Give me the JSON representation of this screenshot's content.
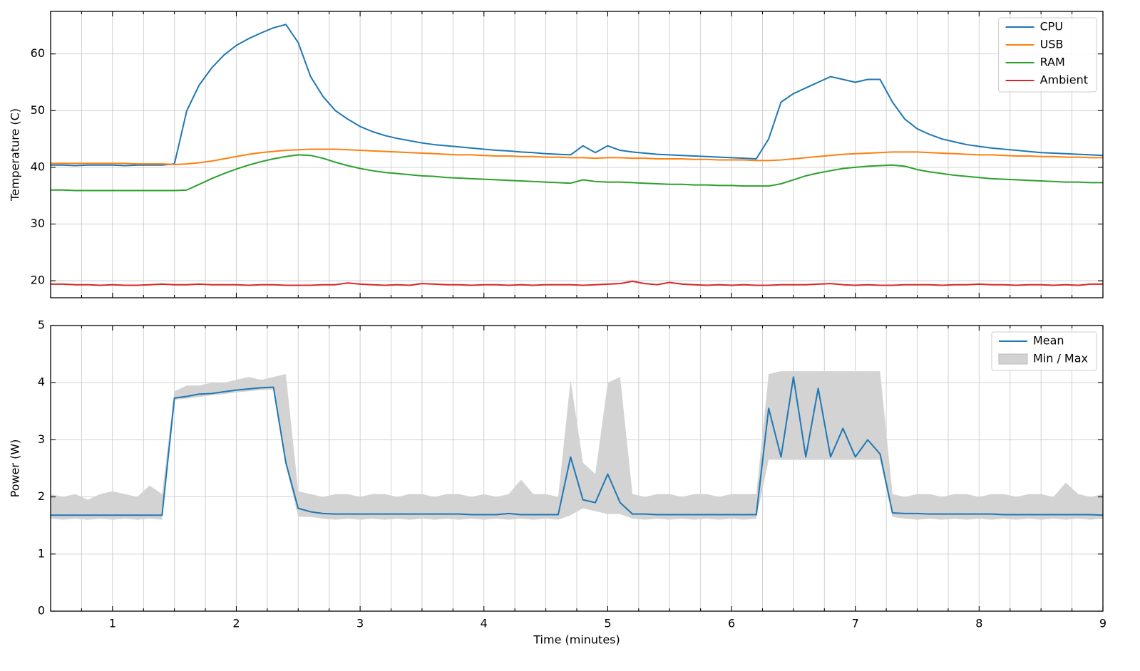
{
  "chart_data": [
    {
      "type": "line",
      "ylabel": "Temperature (C)",
      "x": [
        0.5,
        0.6,
        0.7,
        0.8,
        0.9,
        1.0,
        1.1,
        1.2,
        1.3,
        1.4,
        1.5,
        1.6,
        1.7,
        1.8,
        1.9,
        2.0,
        2.1,
        2.2,
        2.3,
        2.4,
        2.5,
        2.6,
        2.7,
        2.8,
        2.9,
        3.0,
        3.1,
        3.2,
        3.3,
        3.4,
        3.5,
        3.6,
        3.7,
        3.8,
        3.9,
        4.0,
        4.1,
        4.2,
        4.3,
        4.4,
        4.5,
        4.6,
        4.7,
        4.8,
        4.9,
        5.0,
        5.1,
        5.2,
        5.3,
        5.4,
        5.5,
        5.6,
        5.7,
        5.8,
        5.9,
        6.0,
        6.1,
        6.2,
        6.3,
        6.4,
        6.5,
        6.6,
        6.7,
        6.8,
        6.9,
        7.0,
        7.1,
        7.2,
        7.3,
        7.4,
        7.5,
        7.6,
        7.7,
        7.8,
        7.9,
        8.0,
        8.1,
        8.2,
        8.3,
        8.4,
        8.5,
        8.6,
        8.7,
        8.8,
        8.9,
        9.0
      ],
      "xlim": [
        0.5,
        9
      ],
      "ylim": [
        17,
        67.5
      ],
      "xticks": [
        1,
        2,
        3,
        4,
        5,
        6,
        7,
        8,
        9
      ],
      "xticklabels": false,
      "xminorticks": [
        0.5,
        0.75,
        1.25,
        1.5,
        1.75,
        2.25,
        2.5,
        2.75,
        3.25,
        3.5,
        3.75,
        4.25,
        4.5,
        4.75,
        5.25,
        5.5,
        5.75,
        6.25,
        6.5,
        6.75,
        7.25,
        7.5,
        7.75,
        8.25,
        8.5,
        8.75
      ],
      "yticks": [
        20,
        30,
        40,
        50,
        60
      ],
      "grid": true,
      "legend": "upper right",
      "series": [
        {
          "name": "CPU",
          "color": "#1f77b4",
          "values": [
            40.4,
            40.4,
            40.3,
            40.4,
            40.4,
            40.4,
            40.3,
            40.4,
            40.4,
            40.4,
            40.6,
            50,
            54.5,
            57.5,
            59.8,
            61.5,
            62.7,
            63.7,
            64.6,
            65.2,
            62,
            56,
            52.5,
            50,
            48.5,
            47.2,
            46.3,
            45.6,
            45.1,
            44.7,
            44.3,
            44,
            43.8,
            43.6,
            43.4,
            43.2,
            43,
            42.9,
            42.7,
            42.6,
            42.4,
            42.3,
            42.2,
            43.8,
            42.6,
            43.8,
            43,
            42.7,
            42.5,
            42.3,
            42.2,
            42.1,
            42,
            41.9,
            41.8,
            41.7,
            41.6,
            41.5,
            45,
            51.5,
            53,
            54,
            55,
            56,
            55.5,
            55,
            55.5,
            55.5,
            51.5,
            48.5,
            46.8,
            45.8,
            45,
            44.5,
            44,
            43.7,
            43.4,
            43.2,
            43,
            42.8,
            42.6,
            42.5,
            42.4,
            42.3,
            42.2,
            42.1
          ]
        },
        {
          "name": "USB",
          "color": "#ff7f0e",
          "values": [
            40.7,
            40.7,
            40.7,
            40.7,
            40.7,
            40.7,
            40.7,
            40.6,
            40.6,
            40.6,
            40.5,
            40.6,
            40.8,
            41.1,
            41.5,
            41.9,
            42.3,
            42.6,
            42.8,
            43.0,
            43.1,
            43.2,
            43.2,
            43.2,
            43.1,
            43.0,
            42.9,
            42.8,
            42.7,
            42.6,
            42.5,
            42.4,
            42.3,
            42.2,
            42.2,
            42.1,
            42.0,
            42.0,
            41.9,
            41.9,
            41.8,
            41.8,
            41.7,
            41.7,
            41.6,
            41.7,
            41.7,
            41.6,
            41.6,
            41.5,
            41.5,
            41.5,
            41.4,
            41.4,
            41.3,
            41.3,
            41.3,
            41.2,
            41.2,
            41.3,
            41.5,
            41.7,
            41.9,
            42.1,
            42.3,
            42.4,
            42.5,
            42.6,
            42.7,
            42.7,
            42.7,
            42.6,
            42.5,
            42.4,
            42.3,
            42.2,
            42.2,
            42.1,
            42.0,
            42.0,
            41.9,
            41.9,
            41.8,
            41.8,
            41.7,
            41.7
          ]
        },
        {
          "name": "RAM",
          "color": "#2ca02c",
          "values": [
            36.0,
            36.0,
            35.9,
            35.9,
            35.9,
            35.9,
            35.9,
            35.9,
            35.9,
            35.9,
            35.9,
            36.0,
            37.0,
            38.0,
            38.9,
            39.7,
            40.4,
            41.0,
            41.5,
            41.9,
            42.2,
            42.1,
            41.6,
            40.9,
            40.3,
            39.8,
            39.4,
            39.1,
            38.9,
            38.7,
            38.5,
            38.4,
            38.2,
            38.1,
            38.0,
            37.9,
            37.8,
            37.7,
            37.6,
            37.5,
            37.4,
            37.3,
            37.2,
            37.8,
            37.5,
            37.4,
            37.4,
            37.3,
            37.2,
            37.1,
            37.0,
            37.0,
            36.9,
            36.9,
            36.8,
            36.8,
            36.7,
            36.7,
            36.7,
            37.1,
            37.8,
            38.5,
            39.0,
            39.4,
            39.8,
            40.0,
            40.2,
            40.3,
            40.4,
            40.2,
            39.6,
            39.2,
            38.9,
            38.6,
            38.4,
            38.2,
            38.0,
            37.9,
            37.8,
            37.7,
            37.6,
            37.5,
            37.4,
            37.4,
            37.3,
            37.3
          ]
        },
        {
          "name": "Ambient",
          "color": "#d62728",
          "values": [
            19.4,
            19.4,
            19.3,
            19.3,
            19.2,
            19.3,
            19.2,
            19.2,
            19.3,
            19.4,
            19.3,
            19.3,
            19.4,
            19.3,
            19.3,
            19.3,
            19.2,
            19.3,
            19.3,
            19.2,
            19.2,
            19.2,
            19.3,
            19.3,
            19.6,
            19.4,
            19.3,
            19.2,
            19.3,
            19.2,
            19.5,
            19.4,
            19.3,
            19.3,
            19.2,
            19.3,
            19.3,
            19.2,
            19.3,
            19.2,
            19.3,
            19.3,
            19.3,
            19.2,
            19.3,
            19.4,
            19.5,
            19.9,
            19.5,
            19.3,
            19.7,
            19.4,
            19.3,
            19.2,
            19.3,
            19.2,
            19.3,
            19.2,
            19.2,
            19.3,
            19.3,
            19.3,
            19.4,
            19.5,
            19.3,
            19.2,
            19.3,
            19.2,
            19.2,
            19.3,
            19.3,
            19.3,
            19.2,
            19.3,
            19.3,
            19.4,
            19.3,
            19.3,
            19.2,
            19.3,
            19.3,
            19.2,
            19.3,
            19.2,
            19.4,
            19.4
          ]
        }
      ]
    },
    {
      "type": "line",
      "xlabel": "Time (minutes)",
      "ylabel": "Power (W)",
      "x": [
        0.5,
        0.6,
        0.7,
        0.8,
        0.9,
        1.0,
        1.1,
        1.2,
        1.3,
        1.4,
        1.5,
        1.6,
        1.7,
        1.8,
        1.9,
        2.0,
        2.1,
        2.2,
        2.3,
        2.4,
        2.5,
        2.6,
        2.7,
        2.8,
        2.9,
        3.0,
        3.1,
        3.2,
        3.3,
        3.4,
        3.5,
        3.6,
        3.7,
        3.8,
        3.9,
        4.0,
        4.1,
        4.2,
        4.3,
        4.4,
        4.5,
        4.6,
        4.7,
        4.8,
        4.9,
        5.0,
        5.1,
        5.2,
        5.3,
        5.4,
        5.5,
        5.6,
        5.7,
        5.8,
        5.9,
        6.0,
        6.1,
        6.2,
        6.3,
        6.4,
        6.5,
        6.6,
        6.7,
        6.8,
        6.9,
        7.0,
        7.1,
        7.2,
        7.3,
        7.4,
        7.5,
        7.6,
        7.7,
        7.8,
        7.9,
        8.0,
        8.1,
        8.2,
        8.3,
        8.4,
        8.5,
        8.6,
        8.7,
        8.8,
        8.9,
        9.0
      ],
      "xlim": [
        0.5,
        9
      ],
      "ylim": [
        0,
        5
      ],
      "xticks": [
        1,
        2,
        3,
        4,
        5,
        6,
        7,
        8,
        9
      ],
      "xticklabels": true,
      "xminorticks": [
        0.5,
        0.75,
        1.25,
        1.5,
        1.75,
        2.25,
        2.5,
        2.75,
        3.25,
        3.5,
        3.75,
        4.25,
        4.5,
        4.75,
        5.25,
        5.5,
        5.75,
        6.25,
        6.5,
        6.75,
        7.25,
        7.5,
        7.75,
        8.25,
        8.5,
        8.75
      ],
      "yticks": [
        0,
        1,
        2,
        3,
        4,
        5
      ],
      "grid": true,
      "legend": "upper right",
      "series": [
        {
          "name": "Min / Max",
          "color": "#d3d3d3",
          "lower": [
            1.62,
            1.6,
            1.62,
            1.6,
            1.62,
            1.6,
            1.62,
            1.6,
            1.62,
            1.6,
            3.7,
            3.72,
            3.75,
            3.78,
            3.8,
            3.83,
            3.85,
            3.87,
            3.88,
            2.55,
            1.65,
            1.65,
            1.62,
            1.6,
            1.62,
            1.6,
            1.62,
            1.6,
            1.62,
            1.6,
            1.62,
            1.6,
            1.62,
            1.6,
            1.62,
            1.6,
            1.62,
            1.6,
            1.62,
            1.6,
            1.62,
            1.6,
            1.68,
            1.8,
            1.75,
            1.7,
            1.7,
            1.62,
            1.6,
            1.62,
            1.6,
            1.62,
            1.6,
            1.62,
            1.6,
            1.62,
            1.6,
            1.62,
            2.65,
            2.65,
            2.65,
            2.65,
            2.65,
            2.65,
            2.65,
            2.65,
            2.65,
            2.65,
            1.65,
            1.62,
            1.6,
            1.62,
            1.6,
            1.62,
            1.6,
            1.62,
            1.6,
            1.62,
            1.6,
            1.62,
            1.6,
            1.62,
            1.6,
            1.62,
            1.6,
            1.62
          ],
          "upper": [
            2.05,
            2.0,
            2.05,
            1.95,
            2.05,
            2.1,
            2.05,
            2.0,
            2.2,
            2.05,
            3.85,
            3.95,
            3.95,
            4.0,
            4.0,
            4.05,
            4.1,
            4.05,
            4.1,
            4.15,
            2.1,
            2.05,
            2.0,
            2.05,
            2.05,
            2.0,
            2.05,
            2.05,
            2.0,
            2.05,
            2.05,
            2.0,
            2.05,
            2.05,
            2.0,
            2.05,
            2.0,
            2.05,
            2.3,
            2.05,
            2.05,
            2.0,
            4.05,
            2.6,
            2.4,
            4.0,
            4.1,
            2.05,
            2.0,
            2.05,
            2.05,
            2.0,
            2.05,
            2.05,
            2.0,
            2.05,
            2.05,
            2.05,
            4.15,
            4.2,
            4.2,
            4.2,
            4.2,
            4.2,
            4.2,
            4.2,
            4.2,
            4.2,
            2.05,
            2.0,
            2.05,
            2.05,
            2.0,
            2.05,
            2.05,
            2.0,
            2.05,
            2.05,
            2.0,
            2.05,
            2.05,
            2.0,
            2.25,
            2.05,
            2.0,
            2.05
          ]
        },
        {
          "name": "Mean",
          "color": "#1f77b4",
          "values": [
            1.68,
            1.68,
            1.68,
            1.68,
            1.68,
            1.68,
            1.68,
            1.68,
            1.68,
            1.68,
            3.73,
            3.76,
            3.8,
            3.81,
            3.84,
            3.87,
            3.89,
            3.91,
            3.92,
            2.6,
            1.8,
            1.74,
            1.71,
            1.7,
            1.7,
            1.7,
            1.7,
            1.7,
            1.7,
            1.7,
            1.7,
            1.7,
            1.7,
            1.7,
            1.69,
            1.69,
            1.69,
            1.71,
            1.69,
            1.69,
            1.69,
            1.69,
            2.7,
            1.95,
            1.9,
            2.4,
            1.9,
            1.7,
            1.7,
            1.69,
            1.69,
            1.69,
            1.69,
            1.69,
            1.69,
            1.69,
            1.69,
            1.69,
            3.55,
            2.7,
            4.1,
            2.7,
            3.9,
            2.7,
            3.2,
            2.7,
            3.0,
            2.75,
            1.72,
            1.71,
            1.71,
            1.7,
            1.7,
            1.7,
            1.7,
            1.7,
            1.7,
            1.69,
            1.69,
            1.69,
            1.69,
            1.69,
            1.69,
            1.69,
            1.69,
            1.68
          ]
        }
      ]
    }
  ]
}
